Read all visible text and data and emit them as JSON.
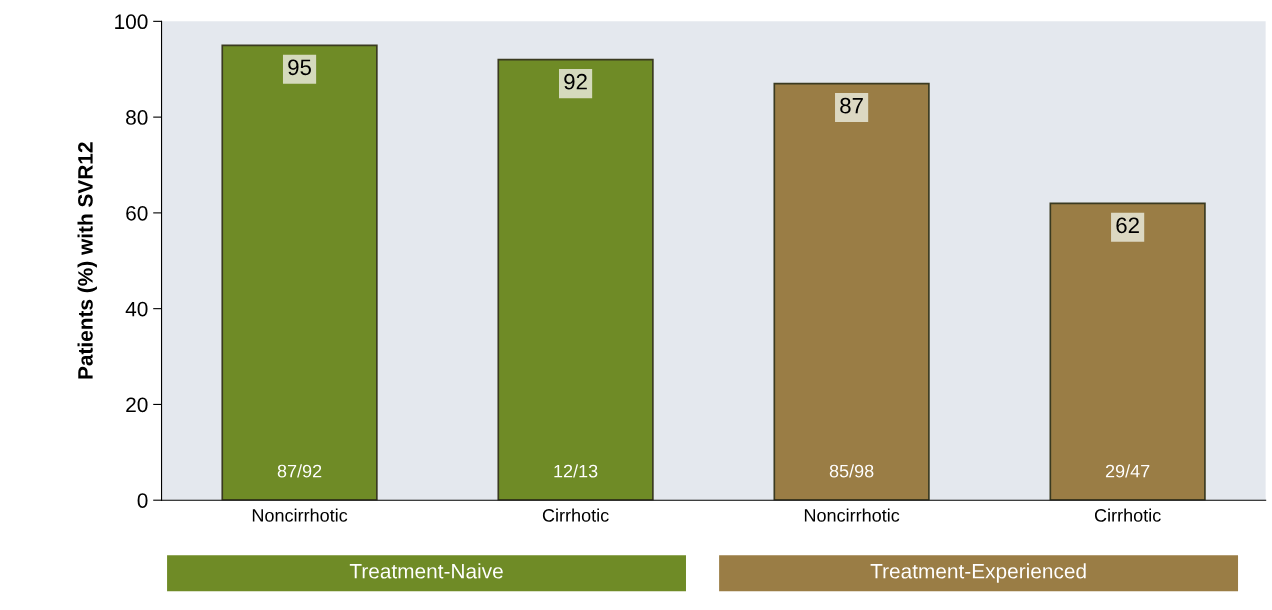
{
  "chart_data": {
    "type": "bar",
    "ylabel": "Patients (%) with SVR12",
    "categories": [
      "Noncirrhotic",
      "Cirrhotic",
      "Noncirrhotic",
      "Cirrhotic"
    ],
    "values": [
      95,
      92,
      87,
      62
    ],
    "colors": [
      "#6f8b26",
      "#6f8b26",
      "#9a7d45",
      "#9a7d45"
    ],
    "data_labels": true,
    "ylim": [
      0,
      100
    ],
    "yticks": [
      0,
      20,
      40,
      60,
      80,
      100
    ],
    "grid": false,
    "legend": false,
    "annotations": [
      "87/92",
      "12/13",
      "85/98",
      "29/47",
      "Treatment-Naive",
      "Treatment-Experienced"
    ]
  }
}
